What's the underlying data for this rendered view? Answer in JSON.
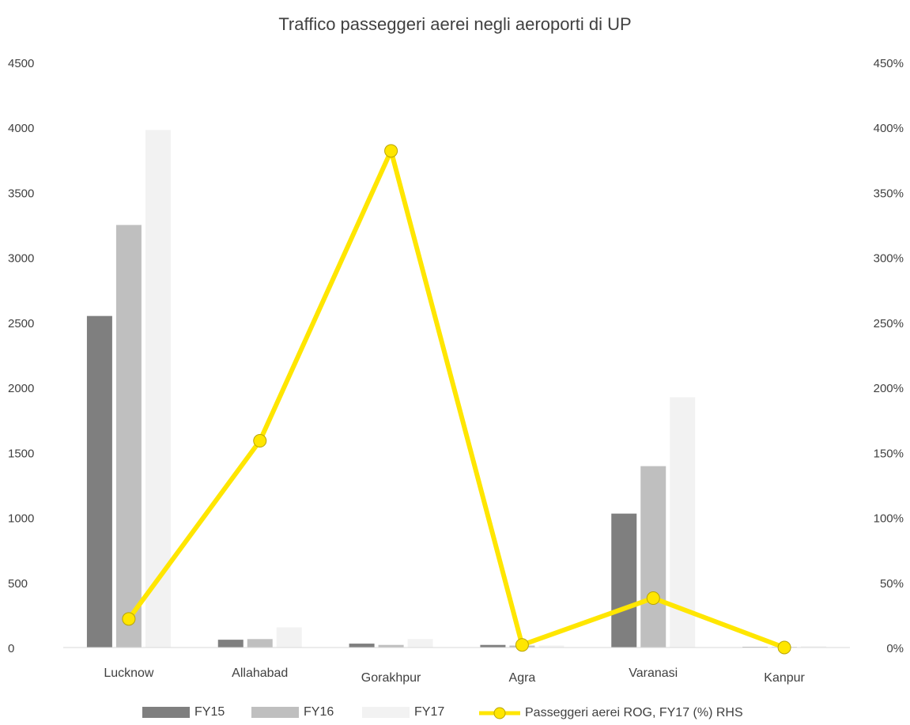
{
  "chart_data": {
    "type": "bar",
    "title": "Traffico passeggeri aerei negli aeroporti di UP",
    "categories": [
      "Lucknow",
      "Allahabad",
      "Gorakhpur",
      "Agra",
      "Varanasi",
      "Kanpur"
    ],
    "series": [
      {
        "name": "FY15",
        "type": "bar",
        "axis": "left",
        "color": "#7f7f7f",
        "values": [
          2550,
          60,
          30,
          20,
          1030,
          5
        ]
      },
      {
        "name": "FY16",
        "type": "bar",
        "axis": "left",
        "color": "#bfbfbf",
        "values": [
          3250,
          65,
          20,
          15,
          1395,
          5
        ]
      },
      {
        "name": "FY17",
        "type": "bar",
        "axis": "left",
        "color": "#f2f2f2",
        "values": [
          3980,
          155,
          65,
          15,
          1925,
          10
        ]
      },
      {
        "name": "Passeggeri aerei ROG, FY17 (%) RHS",
        "type": "line",
        "axis": "right",
        "color": "#ffe600",
        "values": [
          22,
          159,
          382,
          2,
          38,
          0
        ]
      }
    ],
    "y_left": {
      "min": 0,
      "max": 4500,
      "ticks": [
        "0",
        "500",
        "1000",
        "1500",
        "2000",
        "2500",
        "3000",
        "3500",
        "4000",
        "4500"
      ]
    },
    "y_right": {
      "min": 0,
      "max": 450,
      "ticks": [
        "0%",
        "50%",
        "100%",
        "150%",
        "200%",
        "250%",
        "300%",
        "350%",
        "400%",
        "450%"
      ]
    },
    "grid": false,
    "legend_position": "bottom"
  }
}
